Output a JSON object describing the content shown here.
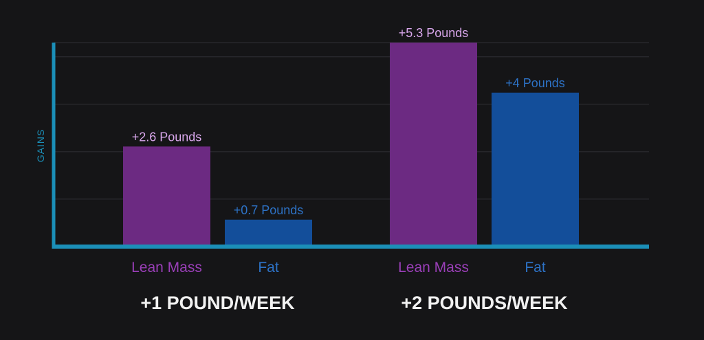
{
  "chart_data": {
    "type": "bar",
    "ylabel": "GAINS",
    "ylim": [
      0,
      5.3
    ],
    "grid": true,
    "groups": [
      {
        "label": "+1 POUND/WEEK",
        "bars": [
          {
            "category": "Lean Mass",
            "value": 2.6,
            "data_label": "+2.6 Pounds"
          },
          {
            "category": "Fat",
            "value": 0.7,
            "data_label": "+0.7 Pounds"
          }
        ]
      },
      {
        "label": "+2 POUNDS/WEEK",
        "bars": [
          {
            "category": "Lean Mass",
            "value": 5.3,
            "data_label": "+5.3 Pounds"
          },
          {
            "category": "Fat",
            "value": 4,
            "data_label": "+4 Pounds"
          }
        ]
      }
    ],
    "colors": {
      "Lean Mass": "#6c2a82",
      "Fat": "#134e9a",
      "Lean Mass label": "#9a3fb8",
      "Fat label": "#2d72c6",
      "axis": "#1b8fb8",
      "group_label": "#f2f2f2",
      "data_label": "#d9a7ec",
      "grid": "#303036"
    }
  }
}
